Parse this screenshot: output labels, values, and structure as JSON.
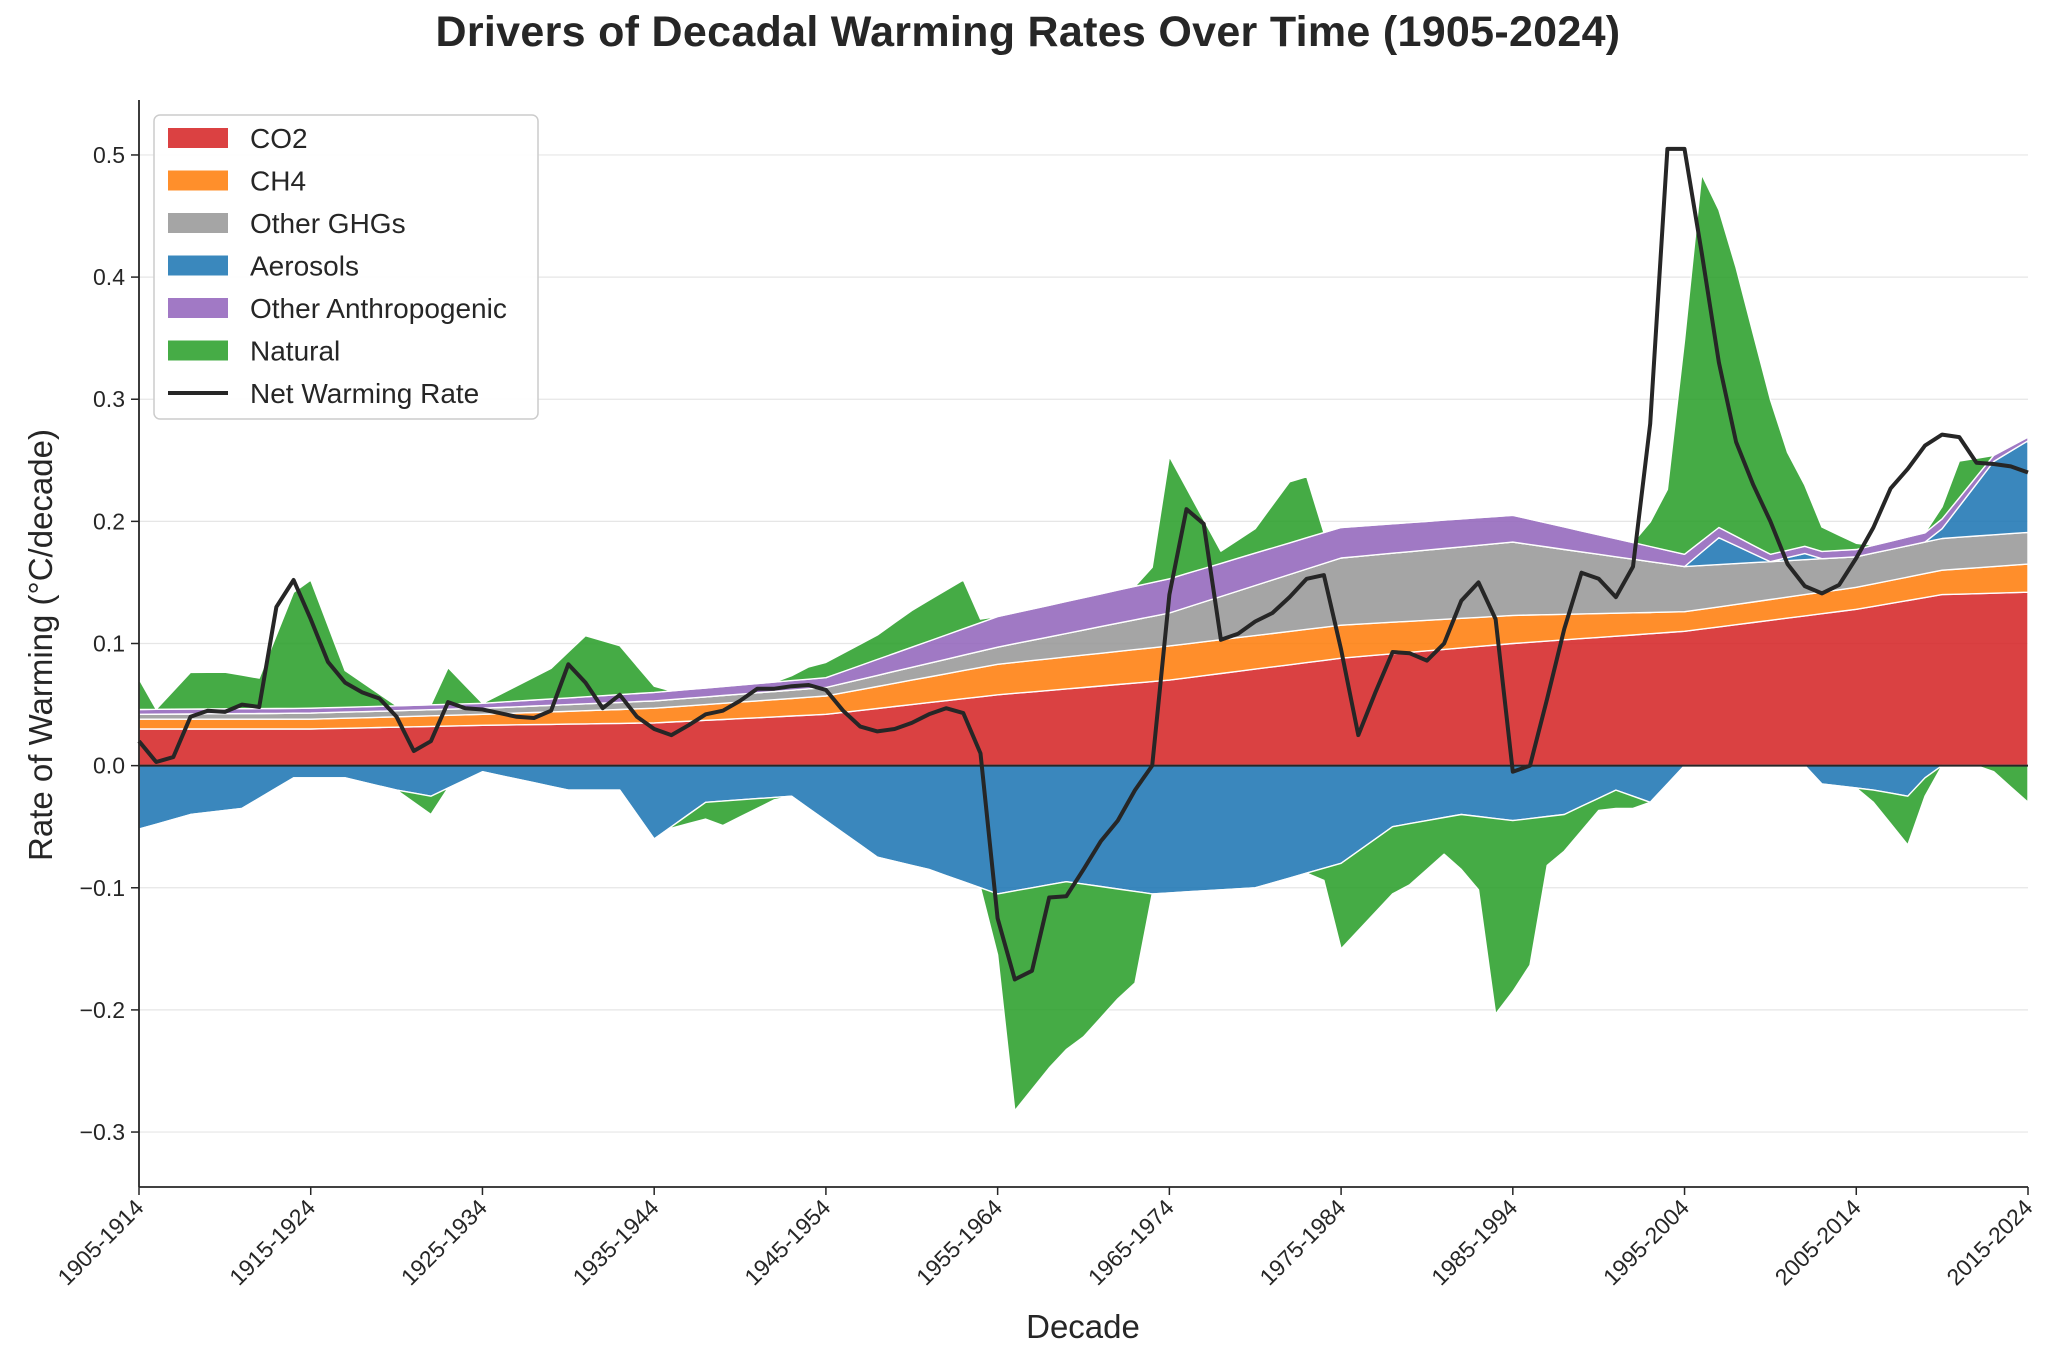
{
  "chart_data": {
    "type": "area",
    "title": "Drivers of Decadal Warming Rates Over Time (1905-2024)",
    "xlabel": "Decade",
    "ylabel": "Rate of Warming (°C/decade)",
    "ylim": [
      -0.345,
      0.545
    ],
    "grid": "horizontal",
    "legend_position": "top-left",
    "yticks": [
      "−0.3",
      "−0.2",
      "−0.1",
      "0.0",
      "0.1",
      "0.2",
      "0.3",
      "0.4",
      "0.5"
    ],
    "ytick_values": [
      -0.3,
      -0.2,
      -0.1,
      0.0,
      0.1,
      0.2,
      0.3,
      0.4,
      0.5
    ],
    "xticks": [
      "1905-1914",
      "1915-1924",
      "1925-1934",
      "1935-1944",
      "1945-1954",
      "1955-1964",
      "1965-1974",
      "1975-1984",
      "1985-1994",
      "1995-2004",
      "2005-2014",
      "2015-2024"
    ],
    "x_start": 1905,
    "x_end": 2015,
    "x_step": 1,
    "colors": {
      "CO2": "#d62728",
      "CH4": "#ff7f0e",
      "Other GHGs": "#999999",
      "Aerosols": "#1f77b4",
      "Other Anthropogenic": "#9467bd",
      "Natural": "#2ca02c",
      "Net Warming Rate": "#262626"
    },
    "series": [
      {
        "name": "CO2",
        "anchors": [
          [
            1905,
            0.03
          ],
          [
            1915,
            0.03
          ],
          [
            1925,
            0.033
          ],
          [
            1935,
            0.035
          ],
          [
            1945,
            0.042
          ],
          [
            1955,
            0.058
          ],
          [
            1965,
            0.07
          ],
          [
            1975,
            0.088
          ],
          [
            1985,
            0.1
          ],
          [
            1995,
            0.11
          ],
          [
            2005,
            0.128
          ],
          [
            2010,
            0.14
          ],
          [
            2015,
            0.142
          ]
        ]
      },
      {
        "name": "CH4",
        "anchors": [
          [
            1905,
            0.008
          ],
          [
            1915,
            0.008
          ],
          [
            1925,
            0.009
          ],
          [
            1935,
            0.012
          ],
          [
            1945,
            0.015
          ],
          [
            1955,
            0.025
          ],
          [
            1965,
            0.028
          ],
          [
            1975,
            0.027
          ],
          [
            1985,
            0.023
          ],
          [
            1995,
            0.016
          ],
          [
            2005,
            0.018
          ],
          [
            2010,
            0.02
          ],
          [
            2015,
            0.023
          ]
        ]
      },
      {
        "name": "Other GHGs",
        "anchors": [
          [
            1905,
            0.004
          ],
          [
            1915,
            0.005
          ],
          [
            1925,
            0.005
          ],
          [
            1935,
            0.006
          ],
          [
            1945,
            0.007
          ],
          [
            1955,
            0.014
          ],
          [
            1965,
            0.027
          ],
          [
            1975,
            0.055
          ],
          [
            1985,
            0.06
          ],
          [
            1995,
            0.037
          ],
          [
            2005,
            0.025
          ],
          [
            2010,
            0.026
          ],
          [
            2015,
            0.026
          ]
        ]
      },
      {
        "name": "Aerosols",
        "anchors": [
          [
            1905,
            -0.052
          ],
          [
            1908,
            -0.04
          ],
          [
            1911,
            -0.035
          ],
          [
            1914,
            -0.01
          ],
          [
            1917,
            -0.01
          ],
          [
            1920,
            -0.02
          ],
          [
            1922,
            -0.025
          ],
          [
            1925,
            -0.005
          ],
          [
            1930,
            -0.02
          ],
          [
            1933,
            -0.02
          ],
          [
            1935,
            -0.06
          ],
          [
            1938,
            -0.03
          ],
          [
            1943,
            -0.025
          ],
          [
            1948,
            -0.075
          ],
          [
            1951,
            -0.085
          ],
          [
            1955,
            -0.105
          ],
          [
            1959,
            -0.095
          ],
          [
            1964,
            -0.105
          ],
          [
            1970,
            -0.1
          ],
          [
            1975,
            -0.08
          ],
          [
            1978,
            -0.05
          ],
          [
            1982,
            -0.04
          ],
          [
            1985,
            -0.045
          ],
          [
            1988,
            -0.04
          ],
          [
            1991,
            -0.02
          ],
          [
            1993,
            -0.03
          ],
          [
            1995,
            0.0
          ],
          [
            1997,
            0.022
          ],
          [
            2000,
            0.0
          ],
          [
            2002,
            0.005
          ],
          [
            2003,
            -0.015
          ],
          [
            2006,
            -0.02
          ],
          [
            2008,
            -0.025
          ],
          [
            2009,
            -0.01
          ],
          [
            2010,
            0.008
          ],
          [
            2013,
            0.06
          ],
          [
            2015,
            0.075
          ]
        ]
      },
      {
        "name": "Other Anthropogenic",
        "anchors": [
          [
            1905,
            0.004
          ],
          [
            1915,
            0.004
          ],
          [
            1925,
            0.004
          ],
          [
            1935,
            0.007
          ],
          [
            1945,
            0.008
          ],
          [
            1955,
            0.025
          ],
          [
            1965,
            0.028
          ],
          [
            1975,
            0.025
          ],
          [
            1985,
            0.022
          ],
          [
            1995,
            0.01
          ],
          [
            2000,
            0.006
          ],
          [
            2005,
            0.006
          ],
          [
            2010,
            0.008
          ],
          [
            2015,
            0.003
          ]
        ]
      },
      {
        "name": "Natural",
        "anchors": [
          [
            1905,
            0.025
          ],
          [
            1906,
            0.0
          ],
          [
            1908,
            0.03
          ],
          [
            1910,
            0.03
          ],
          [
            1912,
            0.025
          ],
          [
            1914,
            0.095
          ],
          [
            1915,
            0.105
          ],
          [
            1917,
            0.03
          ],
          [
            1919,
            0.01
          ],
          [
            1920,
            0.0
          ],
          [
            1922,
            -0.015
          ],
          [
            1923,
            0.03
          ],
          [
            1925,
            0.0
          ],
          [
            1929,
            0.025
          ],
          [
            1931,
            0.05
          ],
          [
            1933,
            0.04
          ],
          [
            1935,
            0.005
          ],
          [
            1939,
            -0.02
          ],
          [
            1944,
            0.01
          ],
          [
            1948,
            0.02
          ],
          [
            1950,
            0.03
          ],
          [
            1953,
            0.04
          ],
          [
            1954,
            0.003
          ],
          [
            1955,
            -0.05
          ],
          [
            1956,
            -0.18
          ],
          [
            1958,
            -0.15
          ],
          [
            1960,
            -0.125
          ],
          [
            1962,
            -0.09
          ],
          [
            1963,
            -0.075
          ],
          [
            1965,
            0.1
          ],
          [
            1968,
            0.01
          ],
          [
            1970,
            0.02
          ],
          [
            1972,
            0.05
          ],
          [
            1973,
            0.05
          ],
          [
            1975,
            -0.07
          ],
          [
            1977,
            -0.06
          ],
          [
            1979,
            -0.05
          ],
          [
            1981,
            -0.03
          ],
          [
            1983,
            -0.06
          ],
          [
            1984,
            -0.16
          ],
          [
            1986,
            -0.12
          ],
          [
            1987,
            -0.04
          ],
          [
            1990,
            -0.01
          ],
          [
            1991,
            -0.015
          ],
          [
            1992,
            -0.01
          ],
          [
            1994,
            0.05
          ],
          [
            1996,
            0.3
          ],
          [
            1998,
            0.22
          ],
          [
            2001,
            0.08
          ],
          [
            2003,
            0.02
          ],
          [
            2005,
            0.005
          ],
          [
            2007,
            -0.025
          ],
          [
            2008,
            -0.04
          ],
          [
            2010,
            0.01
          ],
          [
            2011,
            0.03
          ],
          [
            2012,
            0.015
          ],
          [
            2013,
            -0.005
          ],
          [
            2015,
            -0.03
          ]
        ]
      }
    ],
    "net_warming_rate": [
      [
        1905,
        0.02
      ],
      [
        1906,
        0.003
      ],
      [
        1907,
        0.007
      ],
      [
        1908,
        0.04
      ],
      [
        1909,
        0.045
      ],
      [
        1910,
        0.044
      ],
      [
        1911,
        0.05
      ],
      [
        1912,
        0.048
      ],
      [
        1913,
        0.13
      ],
      [
        1914,
        0.152
      ],
      [
        1915,
        0.12
      ],
      [
        1916,
        0.085
      ],
      [
        1917,
        0.068
      ],
      [
        1918,
        0.06
      ],
      [
        1919,
        0.055
      ],
      [
        1920,
        0.04
      ],
      [
        1921,
        0.012
      ],
      [
        1922,
        0.02
      ],
      [
        1923,
        0.052
      ],
      [
        1924,
        0.047
      ],
      [
        1925,
        0.046
      ],
      [
        1926,
        0.043
      ],
      [
        1927,
        0.04
      ],
      [
        1928,
        0.039
      ],
      [
        1929,
        0.045
      ],
      [
        1930,
        0.083
      ],
      [
        1931,
        0.068
      ],
      [
        1932,
        0.047
      ],
      [
        1933,
        0.058
      ],
      [
        1934,
        0.04
      ],
      [
        1935,
        0.03
      ],
      [
        1936,
        0.025
      ],
      [
        1937,
        0.033
      ],
      [
        1938,
        0.042
      ],
      [
        1939,
        0.045
      ],
      [
        1940,
        0.053
      ],
      [
        1941,
        0.063
      ],
      [
        1942,
        0.063
      ],
      [
        1943,
        0.065
      ],
      [
        1944,
        0.066
      ],
      [
        1945,
        0.062
      ],
      [
        1946,
        0.045
      ],
      [
        1947,
        0.032
      ],
      [
        1948,
        0.028
      ],
      [
        1949,
        0.03
      ],
      [
        1950,
        0.035
      ],
      [
        1951,
        0.042
      ],
      [
        1952,
        0.047
      ],
      [
        1953,
        0.043
      ],
      [
        1954,
        0.01
      ],
      [
        1955,
        -0.125
      ],
      [
        1956,
        -0.175
      ],
      [
        1957,
        -0.168
      ],
      [
        1958,
        -0.108
      ],
      [
        1959,
        -0.107
      ],
      [
        1960,
        -0.085
      ],
      [
        1961,
        -0.062
      ],
      [
        1962,
        -0.045
      ],
      [
        1963,
        -0.02
      ],
      [
        1964,
        0.0
      ],
      [
        1965,
        0.14
      ],
      [
        1966,
        0.21
      ],
      [
        1967,
        0.198
      ],
      [
        1968,
        0.103
      ],
      [
        1969,
        0.108
      ],
      [
        1970,
        0.118
      ],
      [
        1971,
        0.125
      ],
      [
        1972,
        0.138
      ],
      [
        1973,
        0.153
      ],
      [
        1974,
        0.156
      ],
      [
        1975,
        0.095
      ],
      [
        1976,
        0.025
      ],
      [
        1977,
        0.06
      ],
      [
        1978,
        0.093
      ],
      [
        1979,
        0.092
      ],
      [
        1980,
        0.086
      ],
      [
        1981,
        0.1
      ],
      [
        1982,
        0.135
      ],
      [
        1983,
        0.15
      ],
      [
        1984,
        0.12
      ],
      [
        1985,
        -0.005
      ],
      [
        1986,
        0.0
      ],
      [
        1987,
        0.055
      ],
      [
        1988,
        0.112
      ],
      [
        1989,
        0.158
      ],
      [
        1990,
        0.153
      ],
      [
        1991,
        0.138
      ],
      [
        1992,
        0.163
      ],
      [
        1993,
        0.28
      ],
      [
        1994,
        0.505
      ],
      [
        1995,
        0.505
      ],
      [
        1996,
        0.42
      ],
      [
        1997,
        0.33
      ],
      [
        1998,
        0.265
      ],
      [
        1999,
        0.23
      ],
      [
        2000,
        0.2
      ],
      [
        2001,
        0.165
      ],
      [
        2002,
        0.147
      ],
      [
        2003,
        0.141
      ],
      [
        2004,
        0.148
      ],
      [
        2005,
        0.17
      ],
      [
        2006,
        0.195
      ],
      [
        2007,
        0.227
      ],
      [
        2008,
        0.243
      ],
      [
        2009,
        0.262
      ],
      [
        2010,
        0.271
      ],
      [
        2011,
        0.269
      ],
      [
        2012,
        0.248
      ],
      [
        2013,
        0.247
      ],
      [
        2014,
        0.245
      ],
      [
        2015,
        0.24
      ]
    ]
  }
}
